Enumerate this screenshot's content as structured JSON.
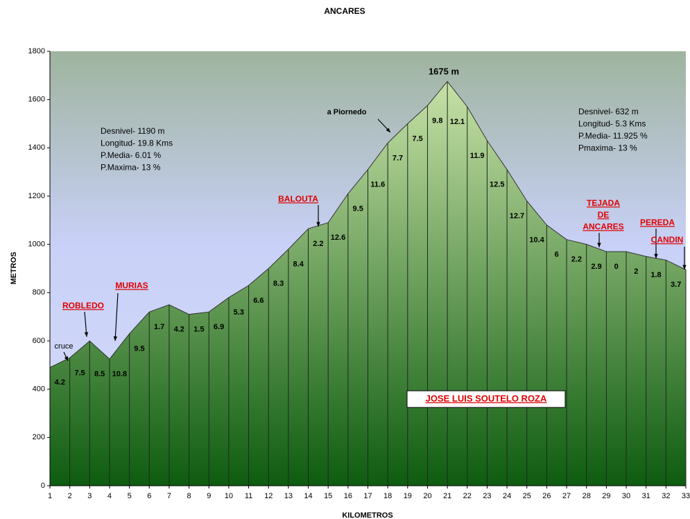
{
  "chart_data": {
    "type": "area",
    "title": "ANCARES",
    "x_label": "KILOMETROS",
    "y_label": "METROS",
    "x": [
      1,
      2,
      3,
      4,
      5,
      6,
      7,
      8,
      9,
      10,
      11,
      12,
      13,
      14,
      15,
      16,
      17,
      18,
      19,
      20,
      21,
      22,
      23,
      24,
      25,
      26,
      27,
      28,
      29,
      30,
      31,
      32,
      33
    ],
    "values": [
      490,
      530,
      600,
      525,
      630,
      720,
      750,
      710,
      720,
      780,
      830,
      900,
      980,
      1065,
      1090,
      1210,
      1310,
      1420,
      1500,
      1575,
      1675,
      1570,
      1430,
      1310,
      1180,
      1080,
      1020,
      1000,
      970,
      970,
      950,
      935,
      895
    ],
    "xlim": [
      1,
      33
    ],
    "ylim": [
      0,
      1800
    ],
    "xticks": [
      1,
      2,
      3,
      4,
      5,
      6,
      7,
      8,
      9,
      10,
      11,
      12,
      13,
      14,
      15,
      16,
      17,
      18,
      19,
      20,
      21,
      22,
      23,
      24,
      25,
      26,
      27,
      28,
      29,
      30,
      31,
      32,
      33
    ],
    "yticks": [
      0,
      200,
      400,
      600,
      800,
      1000,
      1200,
      1400,
      1600,
      1800
    ],
    "segment_labels": [
      4.2,
      7.5,
      8.5,
      10.8,
      9.5,
      1.7,
      4.2,
      1.5,
      6.9,
      5.3,
      6.6,
      8.3,
      8.4,
      2.2,
      12.6,
      9.5,
      11.6,
      7.7,
      7.5,
      9.8,
      12.1,
      11.9,
      12.5,
      12.7,
      10.4,
      6,
      2.2,
      2.9,
      0,
      2,
      1.8,
      3.7
    ],
    "segment_label_colors": [
      "#000",
      "#000",
      "#1030e0",
      "#000",
      "#000",
      "#000",
      "#1030e0",
      "#000",
      "#000",
      "#000",
      "#000",
      "#000",
      "#000",
      "#000",
      "#000",
      "#000",
      "#000",
      "#000",
      "#000",
      "#000",
      "#000",
      "#000",
      "#000",
      "#000",
      "#000",
      "#000",
      "#000",
      "#000",
      "#000",
      "#000",
      "#000",
      "#000"
    ],
    "area_color_top": "#c8e2a8",
    "area_color_bottom": "#0e5c10",
    "annotations": [
      {
        "lines": [
          "1675 m"
        ]
      },
      {
        "lines": [
          "a Piornedo"
        ]
      },
      {
        "lines": [
          "cruce"
        ]
      },
      {
        "lines": [
          "ROBLEDO"
        ]
      },
      {
        "lines": [
          "MURIAS"
        ]
      },
      {
        "lines": [
          "BALOUTA"
        ]
      },
      {
        "lines": [
          "TEJADA",
          "DE",
          "ANCARES"
        ]
      },
      {
        "lines": [
          "PEREDA"
        ]
      },
      {
        "lines": [
          "CANDIN"
        ]
      }
    ],
    "info_boxes": [
      {
        "lines": [
          "Desnivel- 1190 m",
          "Longitud- 19.8 Kms",
          "P.Media- 6.01 %",
          "P.Maxima- 13 %"
        ]
      },
      {
        "lines": [
          "Desnivel- 632 m",
          "Longitud- 5.3 Kms",
          "P.Media- 11.925 %",
          "Pmaxima- 13 %"
        ]
      }
    ],
    "author": "JOSE LUIS SOUTELO ROZA"
  }
}
